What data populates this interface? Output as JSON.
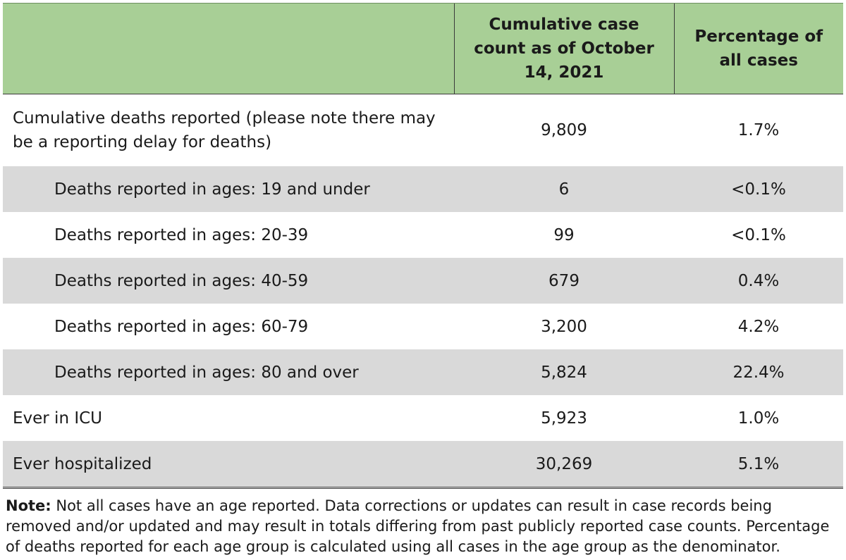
{
  "table": {
    "headers": [
      "",
      "Cumulative case count as of October 14, 2021",
      "Percentage of all cases"
    ],
    "rows": [
      {
        "label": "Cumulative deaths reported (please note there may be a reporting delay for deaths)",
        "count": "9,809",
        "percent": "1.7%"
      },
      {
        "label": "Deaths reported in ages: 19 and under",
        "count": "6",
        "percent": "<0.1%"
      },
      {
        "label": "Deaths reported in ages: 20-39",
        "count": "99",
        "percent": "<0.1%"
      },
      {
        "label": "Deaths reported in ages: 40-59",
        "count": "679",
        "percent": "0.4%"
      },
      {
        "label": "Deaths reported in ages: 60-79",
        "count": "3,200",
        "percent": "4.2%"
      },
      {
        "label": "Deaths reported in ages: 80 and over",
        "count": "5,824",
        "percent": "22.4%"
      },
      {
        "label": "Ever in ICU",
        "count": "5,923",
        "percent": "1.0%"
      },
      {
        "label": "Ever hospitalized",
        "count": "30,269",
        "percent": "5.1%"
      }
    ]
  },
  "note": {
    "label": "Note:",
    "text": " Not all cases have an age reported. Data corrections or updates can result in case records being removed and/or updated and may result in totals differing from past publicly reported case counts. Percentage of deaths reported for each age group is calculated using all cases in the age group as the denominator."
  },
  "colors": {
    "header_bg": "#a8cf96",
    "shaded_row_bg": "#d9d9d9",
    "text": "#1a1a1a"
  }
}
